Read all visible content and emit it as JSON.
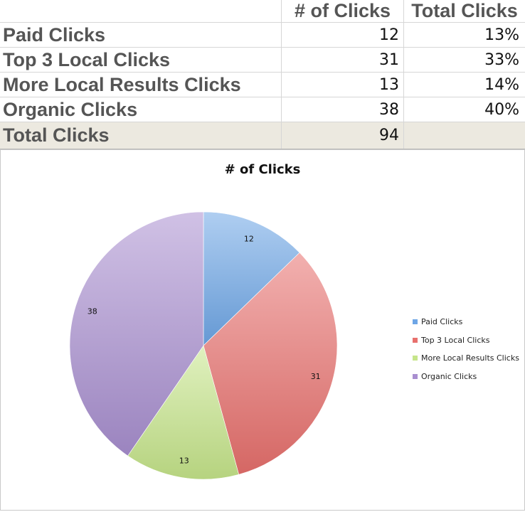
{
  "table": {
    "headers": [
      "",
      "# of Clicks",
      "Total Clicks"
    ],
    "rows": [
      {
        "label": "Paid Clicks",
        "count": "12",
        "percent": "13%"
      },
      {
        "label": "Top 3 Local Clicks",
        "count": "31",
        "percent": "33%"
      },
      {
        "label": "More Local Results Clicks",
        "count": "13",
        "percent": "14%"
      },
      {
        "label": "Organic Clicks",
        "count": "38",
        "percent": "40%"
      }
    ],
    "total": {
      "label": "Total Clicks",
      "count": "94"
    }
  },
  "chart_data": {
    "type": "pie",
    "title": "# of Clicks",
    "categories": [
      "Paid Clicks",
      "Top 3 Local Clicks",
      "More Local Results Clicks",
      "Organic Clicks"
    ],
    "values": [
      12,
      31,
      13,
      38
    ],
    "colors": [
      "#6ea6e6",
      "#e8706d",
      "#c6e58a",
      "#a98fd0"
    ],
    "legend": "right"
  }
}
